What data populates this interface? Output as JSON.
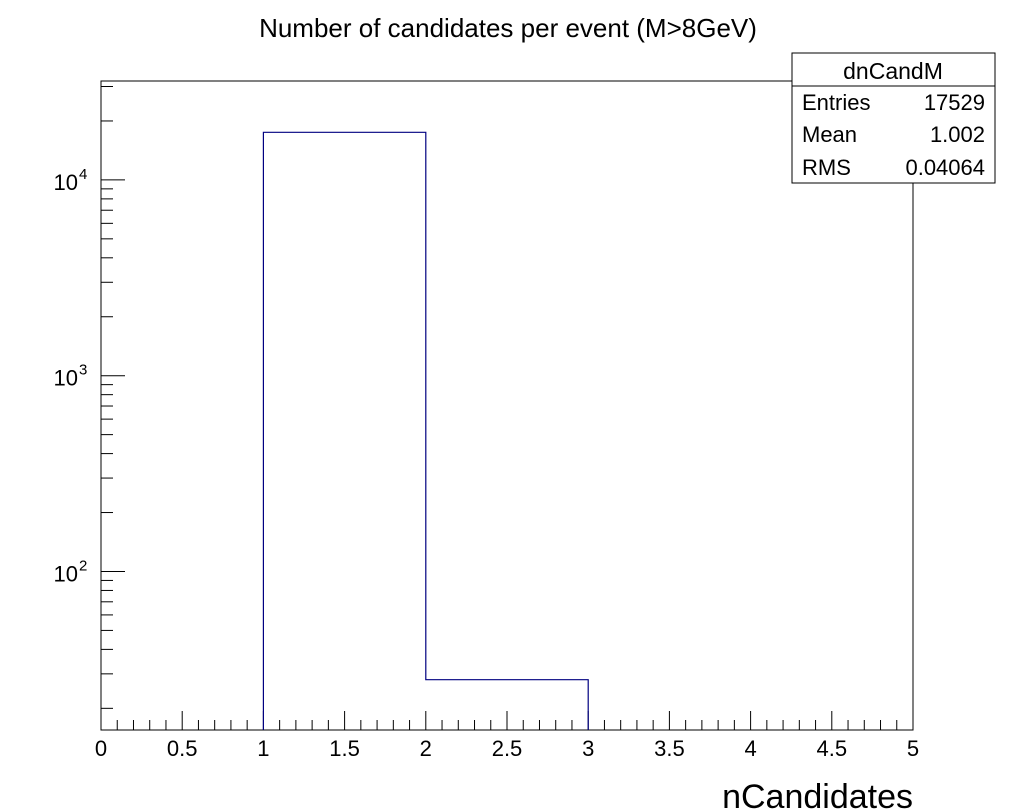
{
  "chart_data": {
    "type": "histogram",
    "title": "Number of candidates per event (M>8GeV)",
    "xlabel": "nCandidates",
    "ylabel": "",
    "xlim": [
      0,
      5
    ],
    "ylim": [
      15.5,
      32000
    ],
    "yscale": "log",
    "grid": false,
    "bins": [
      {
        "x0": 1,
        "x1": 2,
        "value": 17500
      },
      {
        "x0": 2,
        "x1": 3,
        "value": 28
      }
    ],
    "x_tick_labels": [
      "0",
      "0.5",
      "1",
      "1.5",
      "2",
      "2.5",
      "3",
      "3.5",
      "4",
      "4.5",
      "5"
    ],
    "y_tick_labels": [
      {
        "value": 100,
        "base": "10",
        "exponent": "2"
      },
      {
        "value": 1000,
        "base": "10",
        "exponent": "3"
      },
      {
        "value": 10000,
        "base": "10",
        "exponent": "4"
      }
    ],
    "line_color": "#000080",
    "stats_box": {
      "title": "dnCandM",
      "rows": [
        {
          "label": "Entries",
          "value": "17529"
        },
        {
          "label": "Mean",
          "value": "1.002"
        },
        {
          "label": "RMS",
          "value": "0.04064"
        }
      ]
    }
  }
}
